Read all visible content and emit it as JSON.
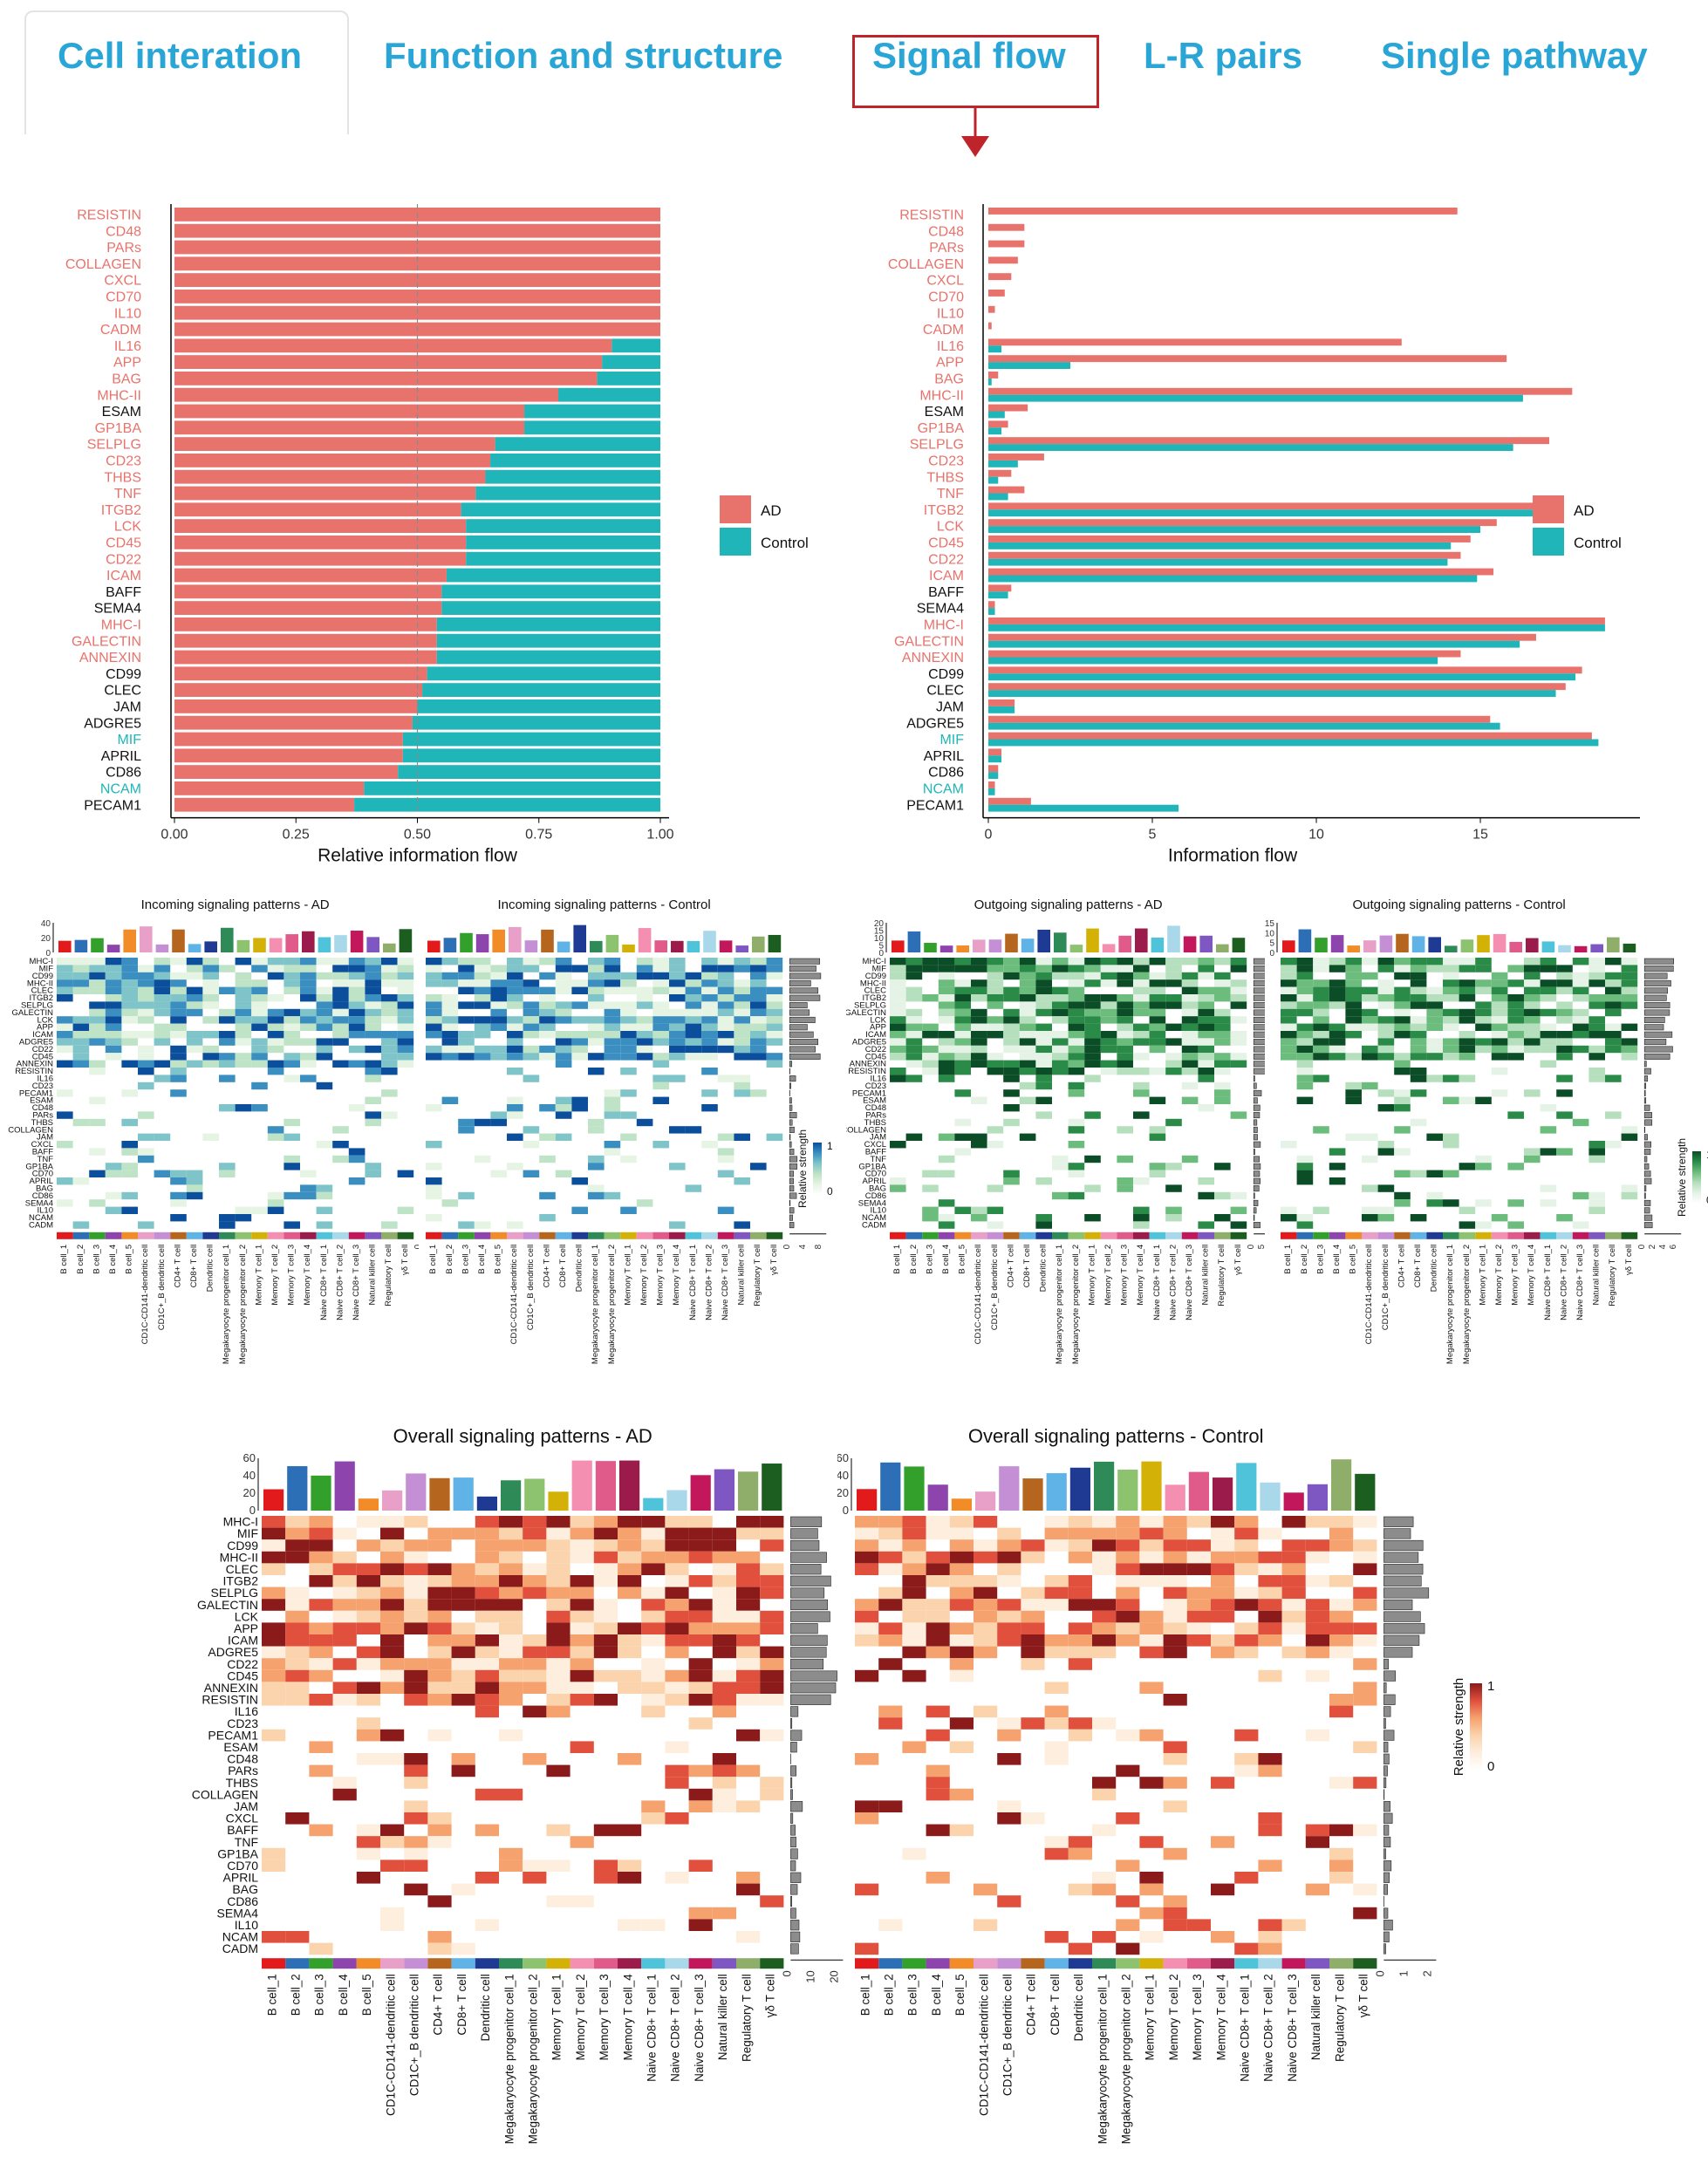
{
  "tabs": [
    {
      "label": "Cell interation"
    },
    {
      "label": "Function and structure"
    },
    {
      "label": "Signal flow"
    },
    {
      "label": "L-R pairs"
    },
    {
      "label": "Single pathway"
    }
  ],
  "colors": {
    "ad": "#e8736c",
    "control": "#20b5b8",
    "tab_text": "#2aa6d6",
    "highlight": "#c0242b",
    "label_red": "#e8736c",
    "label_teal": "#20b5b8"
  },
  "pathways": [
    "RESISTIN",
    "CD48",
    "PARs",
    "COLLAGEN",
    "CXCL",
    "CD70",
    "IL10",
    "CADM",
    "IL16",
    "APP",
    "BAG",
    "MHC-II",
    "ESAM",
    "GP1BA",
    "SELPLG",
    "CD23",
    "THBS",
    "TNF",
    "ITGB2",
    "LCK",
    "CD45",
    "CD22",
    "ICAM",
    "BAFF",
    "SEMA4",
    "MHC-I",
    "GALECTIN",
    "ANNEXIN",
    "CD99",
    "CLEC",
    "JAM",
    "ADGRE5",
    "MIF",
    "APRIL",
    "CD86",
    "NCAM",
    "PECAM1"
  ],
  "pathway_label_colors": [
    "red",
    "red",
    "red",
    "red",
    "red",
    "red",
    "red",
    "red",
    "red",
    "red",
    "red",
    "red",
    "black",
    "red",
    "red",
    "red",
    "red",
    "red",
    "red",
    "red",
    "red",
    "red",
    "red",
    "black",
    "black",
    "red",
    "red",
    "red",
    "black",
    "black",
    "black",
    "black",
    "teal",
    "black",
    "black",
    "teal",
    "black"
  ],
  "legend": {
    "ad": "AD",
    "control": "Control"
  },
  "chart_data": [
    {
      "type": "bar",
      "orientation": "horizontal-stacked",
      "xlabel": "Relative information flow",
      "xticks": [
        "0.00",
        "0.25",
        "0.50",
        "0.75",
        "1.00"
      ],
      "xlim": [
        0,
        1
      ],
      "series": [
        {
          "name": "AD",
          "values": [
            1,
            1,
            1,
            1,
            1,
            1,
            1,
            1,
            0.9,
            0.88,
            0.87,
            0.79,
            0.72,
            0.72,
            0.66,
            0.65,
            0.64,
            0.62,
            0.59,
            0.6,
            0.6,
            0.6,
            0.56,
            0.55,
            0.55,
            0.54,
            0.54,
            0.54,
            0.52,
            0.51,
            0.5,
            0.49,
            0.47,
            0.47,
            0.46,
            0.39,
            0.37
          ]
        },
        {
          "name": "Control",
          "values": [
            0,
            0,
            0,
            0,
            0,
            0,
            0,
            0,
            0.1,
            0.12,
            0.13,
            0.21,
            0.28,
            0.28,
            0.34,
            0.35,
            0.36,
            0.38,
            0.41,
            0.4,
            0.4,
            0.4,
            0.44,
            0.45,
            0.45,
            0.46,
            0.46,
            0.46,
            0.48,
            0.49,
            0.5,
            0.51,
            0.53,
            0.53,
            0.54,
            0.61,
            0.63
          ]
        }
      ]
    },
    {
      "type": "bar",
      "orientation": "horizontal-grouped",
      "xlabel": "Information flow",
      "xticks": [
        "0",
        "5",
        "10",
        "15"
      ],
      "xlim": [
        0,
        19.6
      ],
      "series": [
        {
          "name": "AD",
          "values": [
            14.3,
            1.1,
            1.1,
            0.9,
            0.7,
            0.5,
            0.2,
            0.1,
            12.6,
            15.8,
            0.3,
            17.8,
            1.2,
            0.6,
            17.1,
            1.7,
            0.7,
            1.1,
            17.2,
            15.5,
            14.7,
            14.4,
            15.4,
            0.7,
            0.2,
            18.8,
            16.7,
            14.4,
            18.1,
            17.6,
            0.8,
            15.3,
            18.4,
            0.4,
            0.3,
            0.2,
            1.3
          ]
        },
        {
          "name": "Control",
          "values": [
            0,
            0,
            0,
            0,
            0,
            0,
            0,
            0,
            0.4,
            2.5,
            0.1,
            16.3,
            0.5,
            0.4,
            16.0,
            0.9,
            0.3,
            0.6,
            16.9,
            15.0,
            14.1,
            14.0,
            14.9,
            0.6,
            0.2,
            18.8,
            16.2,
            13.7,
            17.9,
            17.3,
            0.8,
            15.6,
            18.6,
            0.4,
            0.3,
            0.2,
            5.8
          ]
        }
      ]
    },
    {
      "type": "heatmap",
      "title": "Incoming signaling patterns - AD",
      "legend_label": "Relative strength",
      "legend_ticks": [
        "1",
        "0"
      ],
      "top_ticks": [
        "40",
        "20",
        "0"
      ],
      "right_ticks": [
        "0",
        "5",
        "10",
        "15"
      ],
      "rows": [
        "MHC-I",
        "MIF",
        "CD99",
        "MHC-II",
        "CLEC",
        "ITGB2",
        "SELPLG",
        "GALECTIN",
        "LCK",
        "APP",
        "ICAM",
        "ADGRE5",
        "CD22",
        "CD45",
        "ANNEXIN",
        "RESISTIN",
        "IL16",
        "CD23",
        "PECAM1",
        "ESAM",
        "CD48",
        "PARs",
        "THBS",
        "COLLAGEN",
        "JAM",
        "CXCL",
        "BAFF",
        "TNF",
        "GP1BA",
        "CD70",
        "APRIL",
        "BAG",
        "CD86",
        "SEMA4",
        "IL10",
        "NCAM",
        "CADM"
      ]
    },
    {
      "type": "heatmap",
      "title": "Incoming signaling patterns - Control",
      "legend_label": "Relative strength",
      "legend_ticks": [
        "1",
        "0"
      ],
      "right_ticks": [
        "0",
        "4",
        "8"
      ]
    },
    {
      "type": "heatmap",
      "title": "Outgoing signaling patterns - AD",
      "legend_label": "Relative strength",
      "legend_ticks": [
        "1",
        "0"
      ],
      "top_ticks": [
        "20",
        "15",
        "10",
        "5",
        "0"
      ],
      "right_ticks": [
        "0",
        "5",
        "10",
        "15"
      ],
      "rows": [
        "MHC-I",
        "MIF",
        "CD99",
        "MHC-II",
        "CLEC",
        "ITGB2",
        "SELPLG",
        "GALECTIN",
        "LCK",
        "APP",
        "ICAM",
        "ADGRE5",
        "CD22",
        "CD45",
        "ANNEXIN",
        "RESISTIN",
        "IL16",
        "CD23",
        "PECAM1",
        "ESAM",
        "CD48",
        "PARs",
        "THBS",
        "COLLAGEN",
        "JAM",
        "CXCL",
        "BAFF",
        "TNF",
        "GP1BA",
        "CD70",
        "APRIL",
        "BAG",
        "CD86",
        "SEMA4",
        "IL10",
        "NCAM",
        "CADM"
      ]
    },
    {
      "type": "heatmap",
      "title": "Outgoing signaling patterns - Control",
      "legend_label": "Relative strength",
      "legend_ticks": [
        "1",
        "0"
      ],
      "top_ticks": [
        "15",
        "10",
        "5",
        "0"
      ],
      "right_ticks": [
        "0",
        "2",
        "4",
        "6"
      ]
    },
    {
      "type": "heatmap",
      "title": "Overall signaling patterns - AD",
      "legend_label": "Relative strength",
      "legend_ticks": [
        "1",
        "0"
      ],
      "top_ticks": [
        "60",
        "40",
        "20",
        "0"
      ],
      "right_ticks": [
        "0",
        "10",
        "20"
      ],
      "rows": [
        "MHC-I",
        "MIF",
        "CD99",
        "MHC-II",
        "CLEC",
        "ITGB2",
        "SELPLG",
        "GALECTIN",
        "LCK",
        "APP",
        "ICAM",
        "ADGRE5",
        "CD22",
        "CD45",
        "ANNEXIN",
        "RESISTIN",
        "IL16",
        "CD23",
        "PECAM1",
        "ESAM",
        "CD48",
        "PARs",
        "THBS",
        "COLLAGEN",
        "JAM",
        "CXCL",
        "BAFF",
        "TNF",
        "GP1BA",
        "CD70",
        "APRIL",
        "BAG",
        "CD86",
        "SEMA4",
        "IL10",
        "NCAM",
        "CADM"
      ]
    },
    {
      "type": "heatmap",
      "title": "Overall signaling patterns - Control",
      "legend_label": "Relative strength",
      "legend_ticks": [
        "1",
        "0"
      ],
      "top_ticks": [
        "60",
        "40",
        "20",
        "0"
      ],
      "right_ticks": [
        "0",
        "1",
        "2"
      ]
    }
  ],
  "cell_types": [
    "B cell_1",
    "B cell_2",
    "B cell_3",
    "B cell_4",
    "B cell_5",
    "CD1C-CD141-dendritic cell",
    "CD1C+_B dendritic cell",
    "CD4+ T cell",
    "CD8+ T cell",
    "Dendritic cell",
    "Megakaryocyte progenitor cell_1",
    "Megakaryocyte progenitor cell_2",
    "Memory T cell_1",
    "Memory T cell_2",
    "Memory T cell_3",
    "Memory T cell_4",
    "Naive CD8+ T cell_1",
    "Naive CD8+ T cell_2",
    "Naive CD8+ T cell_3",
    "Natural killer cell",
    "Regulatory T cell",
    "γδ T cell"
  ],
  "cell_colors": [
    "#e31a1c",
    "#2c6fb7",
    "#33a02c",
    "#8e44ad",
    "#f28c28",
    "#e8a0c8",
    "#c58fd6",
    "#b5651d",
    "#5fb3e6",
    "#1f3a93",
    "#2e8b57",
    "#8dc26f",
    "#d4b106",
    "#f48fb1",
    "#e05a8a",
    "#9b1b4a",
    "#4fc3d9",
    "#a8d8ea",
    "#c2185b",
    "#7e57c2",
    "#8fae6a",
    "#1b5e20"
  ],
  "heatmap_palettes": {
    "incoming": [
      "#ffffff",
      "#e6f4e4",
      "#bfe3c6",
      "#7fc4c9",
      "#3a8fc0",
      "#0b4f9c"
    ],
    "outgoing": [
      "#ffffff",
      "#e5f3e7",
      "#b5dfbd",
      "#6cbd7d",
      "#2a8b48",
      "#0b4d26"
    ],
    "overall": [
      "#ffffff",
      "#fdeede",
      "#fbd4ad",
      "#f6a26e",
      "#e0503d",
      "#8b1a1a"
    ]
  }
}
